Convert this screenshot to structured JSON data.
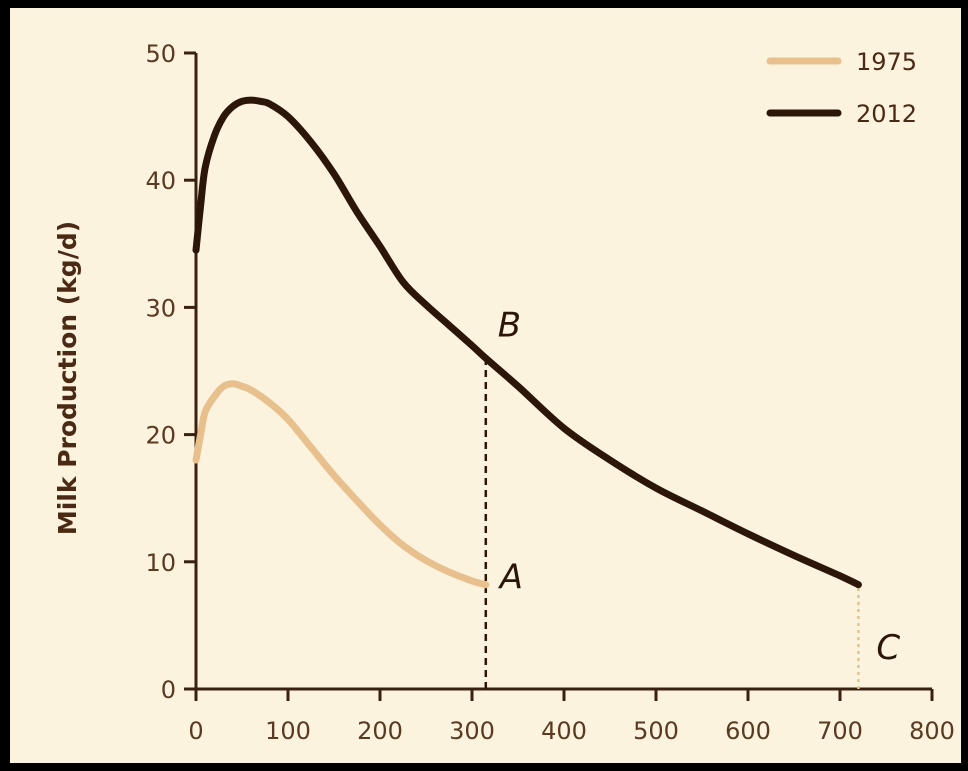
{
  "chart_data": {
    "type": "line",
    "title": "",
    "xlabel": "",
    "ylabel": "Milk Production (kg/d)",
    "xlim": [
      0,
      800
    ],
    "ylim": [
      0,
      50
    ],
    "x_ticks": [
      0,
      100,
      200,
      300,
      400,
      500,
      600,
      700,
      800
    ],
    "y_ticks": [
      0,
      10,
      20,
      30,
      40,
      50
    ],
    "grid": false,
    "legend_position": "top-right",
    "series": [
      {
        "name": "1975",
        "color": "#e8c08e",
        "x": [
          0,
          5,
          10,
          20,
          30,
          40,
          50,
          60,
          80,
          100,
          125,
          150,
          175,
          200,
          225,
          250,
          275,
          300,
          315
        ],
        "y": [
          18,
          20,
          21.8,
          23,
          23.8,
          24,
          23.8,
          23.5,
          22.5,
          21.2,
          19,
          16.8,
          14.8,
          12.9,
          11.3,
          10.1,
          9.2,
          8.5,
          8.2
        ]
      },
      {
        "name": "2012",
        "color": "#2b1608",
        "x": [
          0,
          5,
          10,
          20,
          30,
          40,
          50,
          60,
          70,
          80,
          100,
          125,
          150,
          175,
          200,
          225,
          250,
          275,
          300,
          315,
          350,
          400,
          450,
          500,
          550,
          600,
          650,
          700,
          720
        ],
        "y": [
          34.5,
          38,
          41,
          43.5,
          45,
          45.8,
          46.2,
          46.3,
          46.2,
          46,
          45,
          43,
          40.5,
          37.5,
          34.8,
          32,
          30.2,
          28.6,
          27,
          26,
          23.8,
          20.5,
          18,
          15.8,
          14,
          12.2,
          10.5,
          8.9,
          8.2
        ]
      }
    ],
    "annotations": [
      {
        "text": "A",
        "x": 315,
        "y": 8.2
      },
      {
        "text": "B",
        "x": 315,
        "y": 26
      },
      {
        "text": "C",
        "x": 720,
        "y": 0
      }
    ],
    "reference_lines": [
      {
        "x": 315,
        "y_from": 0,
        "y_to": 26,
        "style": "dashed",
        "color": "#2b1608"
      },
      {
        "x": 720,
        "y_from": 0,
        "y_to": 8.2,
        "style": "dotted",
        "color": "#e8c08e"
      }
    ]
  }
}
